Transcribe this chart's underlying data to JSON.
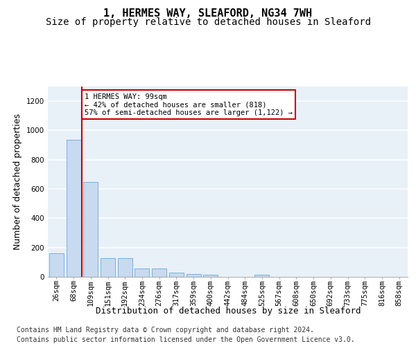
{
  "title_line1": "1, HERMES WAY, SLEAFORD, NG34 7WH",
  "title_line2": "Size of property relative to detached houses in Sleaford",
  "xlabel": "Distribution of detached houses by size in Sleaford",
  "ylabel": "Number of detached properties",
  "footer_line1": "Contains HM Land Registry data © Crown copyright and database right 2024.",
  "footer_line2": "Contains public sector information licensed under the Open Government Licence v3.0.",
  "bin_labels": [
    "26sqm",
    "68sqm",
    "109sqm",
    "151sqm",
    "192sqm",
    "234sqm",
    "276sqm",
    "317sqm",
    "359sqm",
    "400sqm",
    "442sqm",
    "484sqm",
    "525sqm",
    "567sqm",
    "608sqm",
    "650sqm",
    "692sqm",
    "733sqm",
    "775sqm",
    "816sqm",
    "858sqm"
  ],
  "bar_values": [
    160,
    935,
    648,
    130,
    128,
    57,
    57,
    30,
    20,
    12,
    0,
    0,
    12,
    0,
    0,
    0,
    0,
    0,
    0,
    0,
    0
  ],
  "bar_color": "#c8daf0",
  "bar_edge_color": "#7ab0d8",
  "property_line_bin": 1.5,
  "annotation_text": "1 HERMES WAY: 99sqm\n← 42% of detached houses are smaller (818)\n57% of semi-detached houses are larger (1,122) →",
  "annotation_box_color": "#ffffff",
  "annotation_box_edge_color": "#cc0000",
  "vertical_line_color": "#cc0000",
  "ylim": [
    0,
    1300
  ],
  "yticks": [
    0,
    200,
    400,
    600,
    800,
    1000,
    1200
  ],
  "background_color": "#e8f0f8",
  "grid_color": "#ffffff",
  "title_fontsize": 11,
  "subtitle_fontsize": 10,
  "axis_label_fontsize": 9,
  "tick_fontsize": 7.5,
  "footer_fontsize": 7
}
